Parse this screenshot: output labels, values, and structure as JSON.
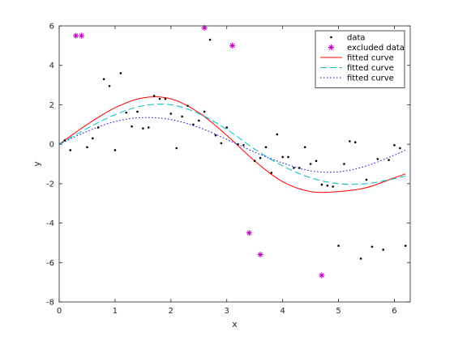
{
  "chart_data": {
    "type": "scatter",
    "title": "",
    "xlabel": "x",
    "ylabel": "y",
    "xlim": [
      0,
      6.2832
    ],
    "ylim": [
      -8,
      6
    ],
    "x_ticks": [
      "0",
      "1",
      "2",
      "3",
      "4",
      "5",
      "6"
    ],
    "y_ticks": [
      "-8",
      "-6",
      "-4",
      "-2",
      "0",
      "2",
      "4",
      "6"
    ],
    "grid": false,
    "box": true,
    "legend_position": "top-right",
    "series": [
      {
        "name": "data",
        "kind": "points",
        "marker": "dot",
        "color": "#000000",
        "x": [
          0.1,
          0.2,
          0.5,
          0.6,
          0.7,
          0.8,
          0.9,
          1.0,
          1.1,
          1.2,
          1.3,
          1.4,
          1.5,
          1.6,
          1.7,
          1.8,
          1.9,
          2.0,
          2.1,
          2.2,
          2.3,
          2.4,
          2.5,
          2.6,
          2.7,
          2.8,
          2.9,
          3.0,
          3.2,
          3.3,
          3.5,
          3.6,
          3.7,
          3.8,
          3.9,
          4.0,
          4.1,
          4.2,
          4.3,
          4.4,
          4.5,
          4.6,
          4.7,
          4.8,
          4.9,
          5.0,
          5.1,
          5.2,
          5.3,
          5.4,
          5.5,
          5.6,
          5.7,
          5.8,
          5.9,
          6.0,
          6.1,
          6.2
        ],
        "y": [
          0.2,
          -0.3,
          -0.15,
          0.3,
          0.85,
          3.3,
          2.95,
          -0.3,
          3.6,
          1.6,
          0.9,
          1.65,
          0.8,
          0.85,
          2.45,
          2.3,
          2.3,
          1.55,
          -0.2,
          1.4,
          1.95,
          1.0,
          1.2,
          1.65,
          5.3,
          0.45,
          0.05,
          0.85,
          0.0,
          -0.05,
          -0.85,
          -0.7,
          -0.15,
          -1.45,
          0.5,
          -0.65,
          -0.65,
          -1.2,
          -1.2,
          -0.15,
          -1.0,
          -0.85,
          -2.05,
          -2.1,
          -2.15,
          -5.15,
          -1.0,
          0.15,
          0.1,
          -5.8,
          -1.8,
          -5.2,
          -0.75,
          -5.35,
          -0.8,
          -0.05,
          -0.2,
          -5.15
        ]
      },
      {
        "name": "excluded data",
        "kind": "points",
        "marker": "asterisk",
        "color": "#bf00bf",
        "x": [
          0.3,
          0.4,
          2.6,
          3.1,
          3.4,
          3.6,
          4.7
        ],
        "y": [
          5.5,
          5.5,
          5.9,
          5.0,
          -4.5,
          -5.6,
          -6.65
        ]
      },
      {
        "name": "fitted curve",
        "kind": "line",
        "style": "solid",
        "color": "#ff0000",
        "x": [
          0,
          0.5,
          1.0,
          1.5,
          2.0,
          2.5,
          3.0,
          3.5,
          4.0,
          4.5,
          5.0,
          5.5,
          6.0,
          6.2
        ],
        "y": [
          0.0,
          1.0,
          1.85,
          2.35,
          2.3,
          1.6,
          0.45,
          -0.85,
          -1.9,
          -2.4,
          -2.4,
          -2.2,
          -1.7,
          -1.5
        ]
      },
      {
        "name": "fitted curve",
        "kind": "line",
        "style": "dashed",
        "color": "#00bfbf",
        "x": [
          0,
          0.5,
          1.0,
          1.5,
          2.0,
          2.5,
          3.0,
          3.5,
          4.0,
          4.5,
          5.0,
          5.5,
          6.0,
          6.2
        ],
        "y": [
          0.0,
          0.8,
          1.5,
          1.95,
          2.0,
          1.55,
          0.75,
          -0.25,
          -1.1,
          -1.7,
          -2.0,
          -2.0,
          -1.75,
          -1.6
        ]
      },
      {
        "name": "fitted curve",
        "kind": "line",
        "style": "dotted",
        "color": "#0000ff",
        "x": [
          0,
          0.5,
          1.0,
          1.5,
          2.0,
          2.5,
          3.0,
          3.5,
          4.0,
          4.5,
          5.0,
          5.5,
          6.0,
          6.2
        ],
        "y": [
          0.0,
          0.65,
          1.15,
          1.35,
          1.25,
          0.85,
          0.25,
          -0.4,
          -0.95,
          -1.35,
          -1.4,
          -1.1,
          -0.55,
          -0.3
        ]
      }
    ]
  }
}
